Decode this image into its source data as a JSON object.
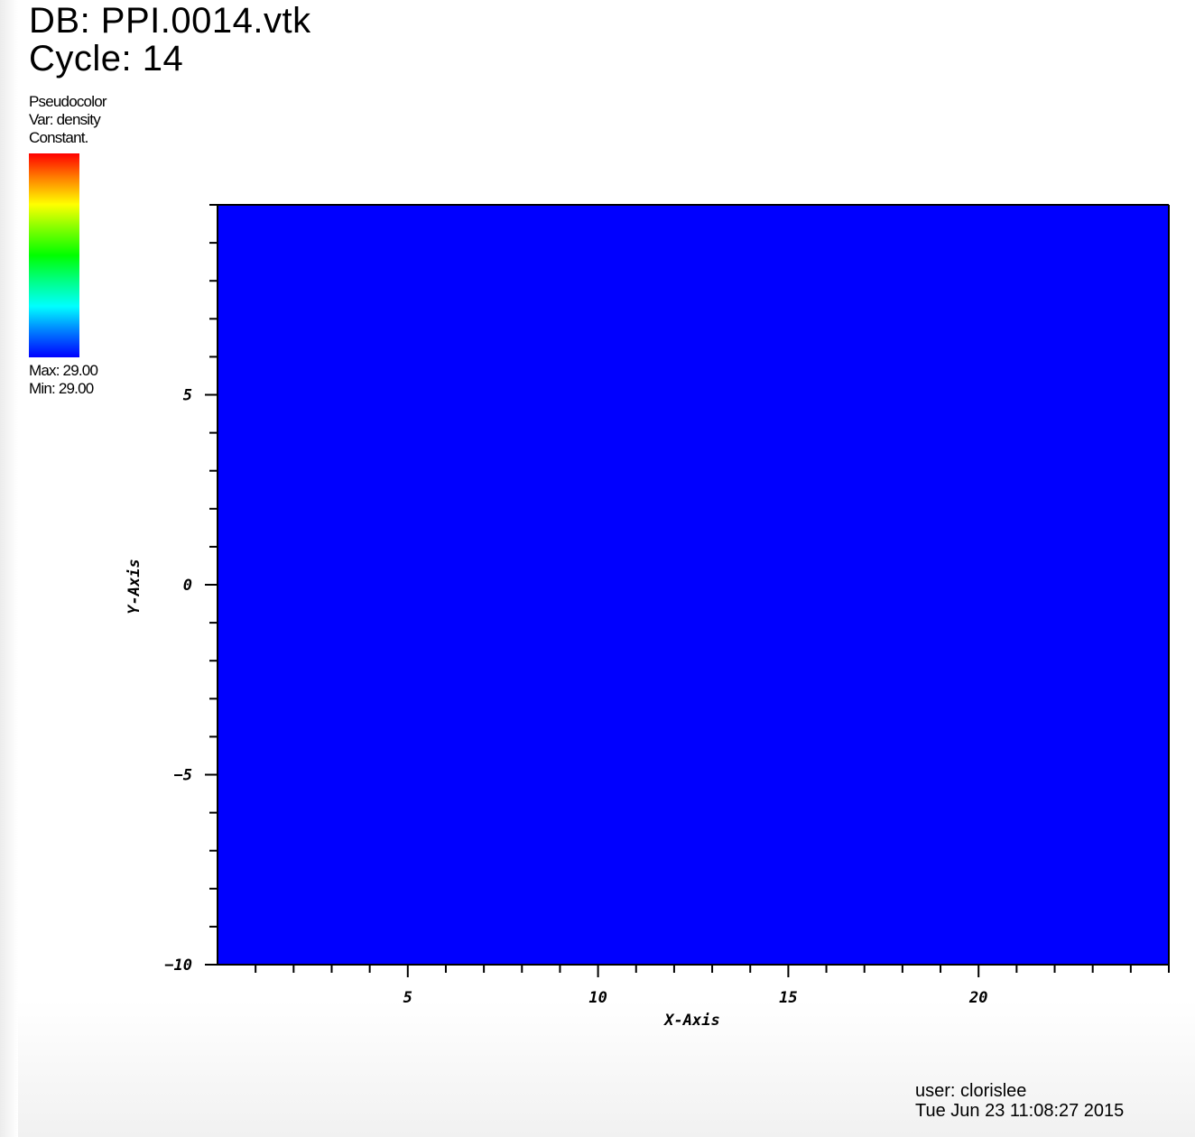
{
  "header": {
    "db_label": "DB: PPI.0014.vtk",
    "cycle_label": "Cycle: 14"
  },
  "legend": {
    "plot_type": "Pseudocolor",
    "var_label": "Var: density",
    "note": "Constant.",
    "max_label": "Max:  29.00",
    "min_label": "Min:  29.00",
    "colormap": [
      "#ff0000",
      "#ff8000",
      "#ffff00",
      "#00ff00",
      "#00ffff",
      "#0000ff"
    ]
  },
  "footer": {
    "user": "user: clorislee",
    "timestamp": "Tue Jun 23 11:08:27 2015"
  },
  "chart_data": {
    "type": "heatmap",
    "xlabel": "X-Axis",
    "ylabel": "Y-Axis",
    "xlim": [
      0,
      25
    ],
    "ylim": [
      -10,
      10
    ],
    "x_ticks": [
      5,
      10,
      15,
      20
    ],
    "x_tick_labels": [
      "5",
      "10",
      "15",
      "20"
    ],
    "y_ticks": [
      -10,
      -5,
      0,
      5
    ],
    "y_tick_labels": [
      "−10",
      "−5",
      "0",
      "5"
    ],
    "x_minor_step": 1,
    "y_minor_step": 1,
    "variable": "density",
    "value_min": 29.0,
    "value_max": 29.0,
    "fill_color": "#0000ff",
    "grid": false
  }
}
